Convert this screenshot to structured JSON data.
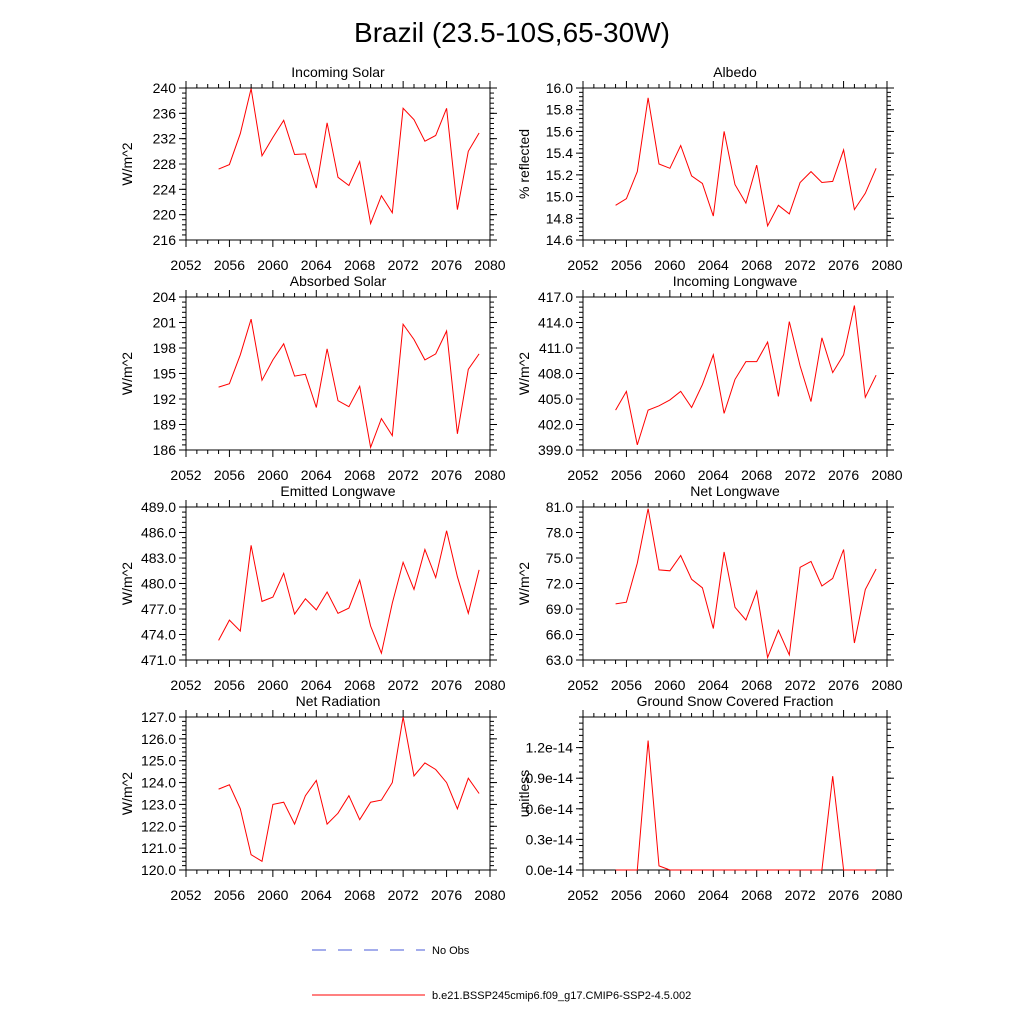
{
  "page_title": "Brazil (23.5-10S,65-30W)",
  "legend": [
    {
      "label": "No Obs",
      "color": "#4a5bd8",
      "style": "dashed"
    },
    {
      "label": "b.e21.BSSP245cmip6.f09_g17.CMIP6-SSP2-4.5.002",
      "color": "#ff0000",
      "style": "solid"
    }
  ],
  "chart_data": [
    {
      "type": "line",
      "title": "Incoming Solar",
      "ylabel": "W/m^2",
      "xlim": [
        2052,
        2080
      ],
      "ylim": [
        216,
        240
      ],
      "xticks": [
        2052,
        2056,
        2060,
        2064,
        2068,
        2072,
        2076,
        2080
      ],
      "yticks": [
        "216",
        "220",
        "224",
        "228",
        "232",
        "236",
        "240"
      ],
      "x": [
        2055,
        2056,
        2057,
        2058,
        2059,
        2060,
        2061,
        2062,
        2063,
        2064,
        2065,
        2066,
        2067,
        2068,
        2069,
        2070,
        2071,
        2072,
        2073,
        2074,
        2075,
        2076,
        2077,
        2078,
        2079
      ],
      "series": [
        {
          "color": "#ff0000",
          "values": [
            227.2,
            227.9,
            232.8,
            239.9,
            229.3,
            232.2,
            234.9,
            229.5,
            229.6,
            224.2,
            234.5,
            225.9,
            224.6,
            228.4,
            218.6,
            223.0,
            220.3,
            236.8,
            235.0,
            231.6,
            232.5,
            236.8,
            220.8,
            230.0,
            232.9
          ]
        }
      ]
    },
    {
      "type": "line",
      "title": "Albedo",
      "ylabel": "% reflected",
      "xlim": [
        2052,
        2080
      ],
      "ylim": [
        14.6,
        16.0
      ],
      "xticks": [
        2052,
        2056,
        2060,
        2064,
        2068,
        2072,
        2076,
        2080
      ],
      "yticks": [
        "14.6",
        "14.8",
        "15.0",
        "15.2",
        "15.4",
        "15.6",
        "15.8",
        "16.0"
      ],
      "x": [
        2055,
        2056,
        2057,
        2058,
        2059,
        2060,
        2061,
        2062,
        2063,
        2064,
        2065,
        2066,
        2067,
        2068,
        2069,
        2070,
        2071,
        2072,
        2073,
        2074,
        2075,
        2076,
        2077,
        2078,
        2079
      ],
      "series": [
        {
          "color": "#ff0000",
          "values": [
            14.92,
            14.98,
            15.23,
            15.91,
            15.3,
            15.26,
            15.47,
            15.19,
            15.12,
            14.82,
            15.6,
            15.11,
            14.94,
            15.29,
            14.73,
            14.92,
            14.84,
            15.13,
            15.23,
            15.13,
            15.14,
            15.43,
            14.88,
            15.03,
            15.26
          ]
        }
      ]
    },
    {
      "type": "line",
      "title": "Absorbed Solar",
      "ylabel": "W/m^2",
      "xlim": [
        2052,
        2080
      ],
      "ylim": [
        186,
        204
      ],
      "xticks": [
        2052,
        2056,
        2060,
        2064,
        2068,
        2072,
        2076,
        2080
      ],
      "yticks": [
        "186",
        "189",
        "192",
        "195",
        "198",
        "201",
        "204"
      ],
      "x": [
        2055,
        2056,
        2057,
        2058,
        2059,
        2060,
        2061,
        2062,
        2063,
        2064,
        2065,
        2066,
        2067,
        2068,
        2069,
        2070,
        2071,
        2072,
        2073,
        2074,
        2075,
        2076,
        2077,
        2078,
        2079
      ],
      "series": [
        {
          "color": "#ff0000",
          "values": [
            193.4,
            193.8,
            197.2,
            201.4,
            194.2,
            196.6,
            198.5,
            194.7,
            194.9,
            191.0,
            197.9,
            191.8,
            191.1,
            193.5,
            186.3,
            189.7,
            187.7,
            200.8,
            199.0,
            196.6,
            197.3,
            200.0,
            187.9,
            195.5,
            197.3
          ]
        }
      ]
    },
    {
      "type": "line",
      "title": "Incoming Longwave",
      "ylabel": "W/m^2",
      "xlim": [
        2052,
        2080
      ],
      "ylim": [
        399.0,
        417.0
      ],
      "xticks": [
        2052,
        2056,
        2060,
        2064,
        2068,
        2072,
        2076,
        2080
      ],
      "yticks": [
        "399.0",
        "402.0",
        "405.0",
        "408.0",
        "411.0",
        "414.0",
        "417.0"
      ],
      "x": [
        2055,
        2056,
        2057,
        2058,
        2059,
        2060,
        2061,
        2062,
        2063,
        2064,
        2065,
        2066,
        2067,
        2068,
        2069,
        2070,
        2071,
        2072,
        2073,
        2074,
        2075,
        2076,
        2077,
        2078,
        2079
      ],
      "series": [
        {
          "color": "#ff0000",
          "values": [
            403.7,
            405.9,
            399.6,
            403.7,
            404.2,
            404.9,
            405.9,
            404.0,
            406.7,
            410.2,
            403.3,
            407.3,
            409.4,
            409.4,
            411.7,
            405.3,
            414.1,
            408.9,
            404.7,
            412.2,
            408.1,
            410.2,
            416.0,
            405.2,
            407.8
          ]
        }
      ]
    },
    {
      "type": "line",
      "title": "Emitted Longwave",
      "ylabel": "W/m^2",
      "xlim": [
        2052,
        2080
      ],
      "ylim": [
        471.0,
        489.0
      ],
      "xticks": [
        2052,
        2056,
        2060,
        2064,
        2068,
        2072,
        2076,
        2080
      ],
      "yticks": [
        "471.0",
        "474.0",
        "477.0",
        "480.0",
        "483.0",
        "486.0",
        "489.0"
      ],
      "x": [
        2055,
        2056,
        2057,
        2058,
        2059,
        2060,
        2061,
        2062,
        2063,
        2064,
        2065,
        2066,
        2067,
        2068,
        2069,
        2070,
        2071,
        2072,
        2073,
        2074,
        2075,
        2076,
        2077,
        2078,
        2079
      ],
      "series": [
        {
          "color": "#ff0000",
          "values": [
            473.3,
            475.7,
            474.4,
            484.5,
            477.9,
            478.4,
            481.2,
            476.4,
            478.2,
            476.9,
            479.0,
            476.5,
            477.1,
            480.4,
            475.0,
            471.8,
            477.7,
            482.5,
            479.3,
            484.0,
            480.7,
            486.2,
            480.8,
            476.5,
            481.6
          ]
        }
      ]
    },
    {
      "type": "line",
      "title": "Net Longwave",
      "ylabel": "W/m^2",
      "xlim": [
        2052,
        2080
      ],
      "ylim": [
        63.0,
        81.0
      ],
      "xticks": [
        2052,
        2056,
        2060,
        2064,
        2068,
        2072,
        2076,
        2080
      ],
      "yticks": [
        "63.0",
        "66.0",
        "69.0",
        "72.0",
        "75.0",
        "78.0",
        "81.0"
      ],
      "x": [
        2055,
        2056,
        2057,
        2058,
        2059,
        2060,
        2061,
        2062,
        2063,
        2064,
        2065,
        2066,
        2067,
        2068,
        2069,
        2070,
        2071,
        2072,
        2073,
        2074,
        2075,
        2076,
        2077,
        2078,
        2079
      ],
      "series": [
        {
          "color": "#ff0000",
          "values": [
            69.6,
            69.8,
            74.4,
            80.8,
            73.6,
            73.5,
            75.3,
            72.5,
            71.5,
            66.7,
            75.7,
            69.2,
            67.7,
            71.1,
            63.3,
            66.5,
            63.6,
            73.9,
            74.6,
            71.7,
            72.6,
            76.0,
            65.0,
            71.3,
            73.7
          ]
        }
      ]
    },
    {
      "type": "line",
      "title": "Net Radiation",
      "ylabel": "W/m^2",
      "xlim": [
        2052,
        2080
      ],
      "ylim": [
        120.0,
        127.0
      ],
      "xticks": [
        2052,
        2056,
        2060,
        2064,
        2068,
        2072,
        2076,
        2080
      ],
      "yticks": [
        "120.0",
        "121.0",
        "122.0",
        "123.0",
        "124.0",
        "125.0",
        "126.0",
        "127.0"
      ],
      "x": [
        2055,
        2056,
        2057,
        2058,
        2059,
        2060,
        2061,
        2062,
        2063,
        2064,
        2065,
        2066,
        2067,
        2068,
        2069,
        2070,
        2071,
        2072,
        2073,
        2074,
        2075,
        2076,
        2077,
        2078,
        2079
      ],
      "series": [
        {
          "color": "#ff0000",
          "values": [
            123.7,
            123.9,
            122.8,
            120.7,
            120.4,
            123.0,
            123.1,
            122.1,
            123.4,
            124.1,
            122.1,
            122.6,
            123.4,
            122.3,
            123.1,
            123.2,
            124.0,
            127.0,
            124.3,
            124.9,
            124.6,
            124.0,
            122.8,
            124.2,
            123.5
          ]
        }
      ]
    },
    {
      "type": "line",
      "title": "Ground Snow Covered Fraction",
      "ylabel": "unitless",
      "xlim": [
        2052,
        2080
      ],
      "ylim": [
        0.0,
        1.5
      ],
      "yunit_note": "values in units of 1e-14",
      "xticks": [
        2052,
        2056,
        2060,
        2064,
        2068,
        2072,
        2076,
        2080
      ],
      "yticks": [
        "0.0e-14",
        "0.3e-14",
        "0.6e-14",
        "0.9e-14",
        "1.2e-14"
      ],
      "ytick_values": [
        0.0,
        0.3,
        0.6,
        0.9,
        1.2
      ],
      "x": [
        2055,
        2056,
        2057,
        2058,
        2059,
        2060,
        2061,
        2062,
        2063,
        2064,
        2065,
        2066,
        2067,
        2068,
        2069,
        2070,
        2071,
        2072,
        2073,
        2074,
        2075,
        2076,
        2077,
        2078,
        2079
      ],
      "series": [
        {
          "color": "#ff0000",
          "values": [
            0,
            0,
            0,
            1.27,
            0.04,
            0,
            0,
            0,
            0,
            0,
            0,
            0,
            0,
            0,
            0,
            0,
            0,
            0,
            0,
            0,
            0.92,
            0,
            0,
            0,
            0
          ]
        }
      ]
    }
  ]
}
